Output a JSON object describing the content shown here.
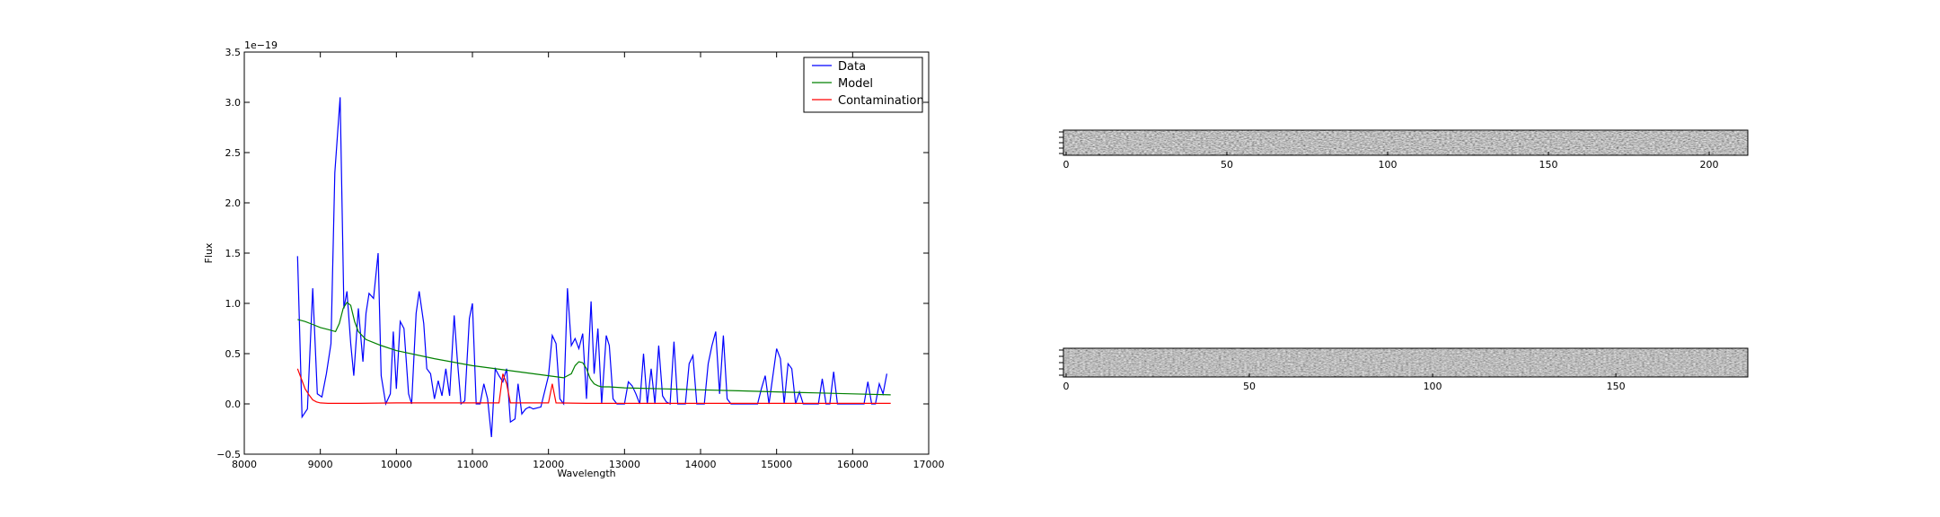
{
  "chart_data": [
    {
      "type": "line",
      "title": "",
      "xlabel": "Wavelength",
      "ylabel": "Flux",
      "offset_text": "1e−19",
      "xlim": [
        8000,
        17000
      ],
      "ylim": [
        -0.5,
        3.5
      ],
      "xticks": [
        8000,
        9000,
        10000,
        11000,
        12000,
        13000,
        14000,
        15000,
        16000,
        17000
      ],
      "yticks": [
        -0.5,
        0.0,
        0.5,
        1.0,
        1.5,
        2.0,
        2.5,
        3.0,
        3.5
      ],
      "yscale_note": "values in units of 1e-19",
      "grid": false,
      "legend_position": "top-right",
      "series": [
        {
          "name": "Data",
          "color": "#0000ff",
          "x": [
            8700,
            8760,
            8830,
            8900,
            8960,
            9020,
            9080,
            9140,
            9190,
            9260,
            9310,
            9350,
            9400,
            9440,
            9500,
            9560,
            9600,
            9640,
            9700,
            9760,
            9800,
            9860,
            9920,
            9960,
            10000,
            10050,
            10100,
            10160,
            10200,
            10260,
            10300,
            10360,
            10400,
            10450,
            10500,
            10550,
            10600,
            10650,
            10700,
            10760,
            10800,
            10850,
            10900,
            10960,
            11000,
            11050,
            11100,
            11150,
            11200,
            11250,
            11300,
            11350,
            11400,
            11450,
            11500,
            11560,
            11600,
            11650,
            11700,
            11750,
            11800,
            11900,
            12000,
            12050,
            12100,
            12150,
            12200,
            12250,
            12300,
            12350,
            12400,
            12450,
            12500,
            12560,
            12600,
            12650,
            12700,
            12760,
            12800,
            12850,
            12900,
            13000,
            13050,
            13100,
            13150,
            13200,
            13250,
            13300,
            13350,
            13400,
            13450,
            13500,
            13550,
            13600,
            13650,
            13700,
            13750,
            13800,
            13850,
            13900,
            13950,
            14000,
            14050,
            14100,
            14150,
            14200,
            14250,
            14300,
            14350,
            14400,
            14450,
            14500,
            14550,
            14600,
            14650,
            14700,
            14750,
            14800,
            14850,
            14900,
            15000,
            15050,
            15100,
            15150,
            15200,
            15250,
            15300,
            15350,
            15400,
            15450,
            15500,
            15550,
            15600,
            15650,
            15700,
            15750,
            15800,
            15850,
            15900,
            15950,
            16000,
            16100,
            16150,
            16200,
            16250,
            16300,
            16350,
            16400,
            16450
          ],
          "y": [
            1.47,
            -0.13,
            -0.05,
            1.15,
            0.1,
            0.07,
            0.3,
            0.6,
            2.3,
            3.05,
            0.95,
            1.12,
            0.6,
            0.28,
            0.95,
            0.42,
            0.9,
            1.1,
            1.05,
            1.5,
            0.28,
            0.0,
            0.1,
            0.72,
            0.15,
            0.82,
            0.75,
            0.1,
            0.0,
            0.9,
            1.12,
            0.8,
            0.35,
            0.3,
            0.05,
            0.23,
            0.08,
            0.35,
            0.08,
            0.88,
            0.45,
            0.0,
            0.03,
            0.85,
            1.0,
            0.0,
            0.0,
            0.2,
            0.05,
            -0.33,
            0.35,
            0.28,
            0.22,
            0.35,
            -0.18,
            -0.15,
            0.2,
            -0.1,
            -0.05,
            -0.03,
            -0.05,
            -0.03,
            0.28,
            0.68,
            0.6,
            0.05,
            0.0,
            1.15,
            0.58,
            0.65,
            0.55,
            0.7,
            0.05,
            1.02,
            0.3,
            0.75,
            0.0,
            0.68,
            0.58,
            0.05,
            0.0,
            0.0,
            0.22,
            0.18,
            0.1,
            0.0,
            0.5,
            0.0,
            0.35,
            0.0,
            0.58,
            0.08,
            0.02,
            0.0,
            0.62,
            0.0,
            0.0,
            0.0,
            0.4,
            0.48,
            0.0,
            0.0,
            0.0,
            0.4,
            0.58,
            0.72,
            0.1,
            0.68,
            0.05,
            0.0,
            0.0,
            0.0,
            0.0,
            0.0,
            0.0,
            0.0,
            0.0,
            0.15,
            0.28,
            0.0,
            0.55,
            0.45,
            0.0,
            0.4,
            0.35,
            0.0,
            0.12,
            0.0,
            0.0,
            0.0,
            0.0,
            0.0,
            0.25,
            0.0,
            0.0,
            0.32,
            0.0,
            0.0,
            0.0,
            0.0,
            0.0,
            0.0,
            0.0,
            0.22,
            0.0,
            0.0,
            0.2,
            0.1,
            0.3
          ]
        },
        {
          "name": "Model",
          "color": "#008000",
          "x": [
            8700,
            8800,
            8900,
            9000,
            9100,
            9200,
            9250,
            9300,
            9350,
            9400,
            9450,
            9500,
            9600,
            9800,
            10000,
            10500,
            11000,
            11500,
            12000,
            12200,
            12300,
            12350,
            12400,
            12450,
            12500,
            12550,
            12600,
            12650,
            12700,
            12800,
            13000,
            13500,
            14000,
            14500,
            15000,
            15500,
            16000,
            16500
          ],
          "y": [
            0.84,
            0.82,
            0.79,
            0.76,
            0.74,
            0.72,
            0.8,
            0.95,
            1.01,
            0.98,
            0.82,
            0.72,
            0.64,
            0.58,
            0.53,
            0.45,
            0.38,
            0.33,
            0.28,
            0.26,
            0.3,
            0.38,
            0.42,
            0.41,
            0.35,
            0.25,
            0.2,
            0.18,
            0.17,
            0.17,
            0.16,
            0.15,
            0.14,
            0.13,
            0.12,
            0.11,
            0.1,
            0.09
          ]
        },
        {
          "name": "Contamination",
          "color": "#ff0000",
          "x": [
            8700,
            8750,
            8800,
            8850,
            8900,
            8950,
            9000,
            9100,
            9200,
            9500,
            10000,
            10500,
            11000,
            11350,
            11400,
            11450,
            11500,
            12000,
            12050,
            12100,
            12500,
            13000,
            14000,
            15000,
            16000,
            16500
          ],
          "y": [
            0.35,
            0.25,
            0.15,
            0.09,
            0.04,
            0.02,
            0.01,
            0.005,
            0.005,
            0.005,
            0.01,
            0.01,
            0.01,
            0.01,
            0.3,
            0.2,
            0.01,
            0.01,
            0.2,
            0.01,
            0.005,
            0.005,
            0.005,
            0.005,
            0.005,
            0.005
          ]
        }
      ]
    },
    {
      "type": "heatmap",
      "title": "",
      "colormap": "gray",
      "xlim": [
        0,
        212
      ],
      "xticks": [
        0,
        50,
        100,
        150,
        200
      ],
      "grid": false
    },
    {
      "type": "heatmap",
      "title": "",
      "colormap": "gray",
      "xlim": [
        0,
        186
      ],
      "xticks": [
        0,
        50,
        100,
        150
      ],
      "grid": false
    }
  ]
}
